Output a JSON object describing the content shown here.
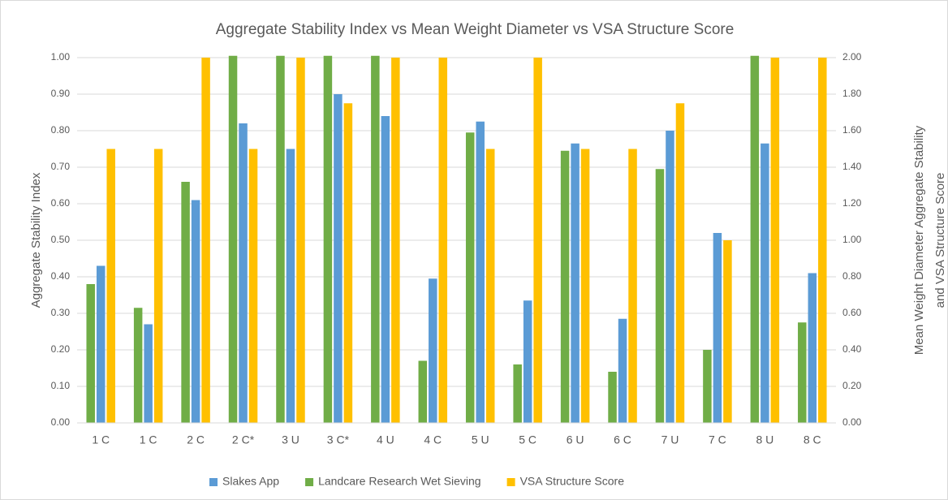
{
  "chart_data": {
    "type": "bar",
    "title": "Aggregate Stability Index vs Mean Weight Diameter vs VSA Structure Score",
    "ylabel": "Aggregate Stability Index",
    "y2label": [
      "Mean Weight Diameter Aggregate Stability",
      "and VSA Structure Score"
    ],
    "categories": [
      "1 C",
      "1 C",
      "2 C",
      "2 C*",
      "3 U",
      "3 C*",
      "4 U",
      "4 C",
      "5 U",
      "5 C",
      "6 U",
      "6 C",
      "7 U",
      "7 C",
      "8 U",
      "8 C"
    ],
    "series": [
      {
        "name": "Slakes App",
        "color": "#5b9bd5",
        "values": [
          0.43,
          0.27,
          0.61,
          0.82,
          0.75,
          0.9,
          0.84,
          0.395,
          0.825,
          0.335,
          0.765,
          0.285,
          0.8,
          0.52,
          0.765,
          0.41
        ]
      },
      {
        "name": "Landcare Research Wet Sieving",
        "color": "#70ad47",
        "axis": "y2",
        "values": [
          0.76,
          0.63,
          1.32,
          2.01,
          2.01,
          2.01,
          2.01,
          0.34,
          1.59,
          0.32,
          1.49,
          0.28,
          1.39,
          0.4,
          2.01,
          0.55
        ]
      },
      {
        "name": "VSA Structure Score",
        "color": "#ffc000",
        "axis": "y2",
        "values": [
          1.5,
          1.5,
          2.0,
          1.5,
          2.0,
          1.75,
          2.0,
          2.0,
          1.5,
          2.0,
          1.5,
          1.5,
          1.75,
          1.0,
          2.0,
          2.0
        ]
      }
    ],
    "ylim": [
      0,
      1
    ],
    "yticks": [
      {
        "value": 0,
        "label": "0.00"
      },
      {
        "value": 0.1,
        "label": "0.10"
      },
      {
        "value": 0.2,
        "label": "0.20"
      },
      {
        "value": 0.3,
        "label": "0.30"
      },
      {
        "value": 0.4,
        "label": "0.40"
      },
      {
        "value": 0.5,
        "label": "0.50"
      },
      {
        "value": 0.6,
        "label": "0.60"
      },
      {
        "value": 0.7,
        "label": "0.70"
      },
      {
        "value": 0.8,
        "label": "0.80"
      },
      {
        "value": 0.9,
        "label": "0.90"
      },
      {
        "value": 1,
        "label": "1.00"
      }
    ],
    "y2lim": [
      0,
      2
    ],
    "y2ticks": [
      {
        "value": 0,
        "label": "0.00"
      },
      {
        "value": 0.2,
        "label": "0.20"
      },
      {
        "value": 0.4,
        "label": "0.40"
      },
      {
        "value": 0.6,
        "label": "0.60"
      },
      {
        "value": 0.8,
        "label": "0.80"
      },
      {
        "value": 1,
        "label": "1.00"
      },
      {
        "value": 1.2,
        "label": "1.20"
      },
      {
        "value": 1.4,
        "label": "1.40"
      },
      {
        "value": 1.6,
        "label": "1.60"
      },
      {
        "value": 1.8,
        "label": "1.80"
      },
      {
        "value": 2,
        "label": "2.00"
      }
    ],
    "grid": true,
    "legend": "bottom"
  }
}
